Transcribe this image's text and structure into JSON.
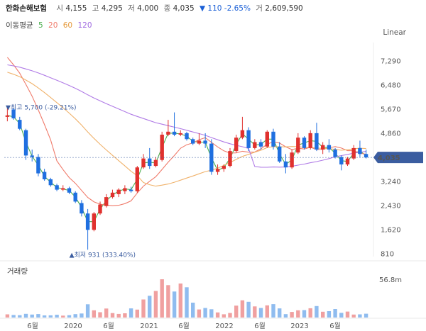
{
  "header": {
    "name": "한화손해보험",
    "open_label": "시",
    "open": "4,155",
    "high_label": "고",
    "high": "4,295",
    "low_label": "저",
    "low": "4,000",
    "close_label": "종",
    "close": "4,035",
    "change": "▼ 110 -2.65%",
    "volume_label": "거",
    "volume": "2,609,590"
  },
  "ma_legend": {
    "label": "이동평균",
    "p5": "5",
    "p20": "20",
    "p60": "60",
    "p120": "120"
  },
  "scale_mode": "Linear",
  "volume_title": "거래량",
  "colors": {
    "up": "#e0312e",
    "down": "#1f6fe0",
    "ma5": "#4caf50",
    "ma20": "#f07b6b",
    "ma60": "#f0b26b",
    "ma120": "#b07be6",
    "badge": "#3b5da0"
  },
  "chart_data": {
    "type": "candlestick",
    "y_ticks": [
      7290,
      6480,
      5670,
      4860,
      4035,
      3240,
      2430,
      1620,
      810
    ],
    "ylim": [
      700,
      7900
    ],
    "x_labels": [
      "6월",
      "2020",
      "6월",
      "2021",
      "6월",
      "2022",
      "6월",
      "2023",
      "6월"
    ],
    "last_price_badge": "4,035",
    "annotations": {
      "high": "▼최고 5,700 (-29.21%)",
      "low": "▲최저 931 (333.40%)"
    },
    "volume_tick": "56.8m",
    "candles": [
      {
        "o": 5400,
        "h": 5700,
        "l": 5250,
        "c": 5450
      },
      {
        "o": 5650,
        "h": 5700,
        "l": 5300,
        "c": 5350
      },
      {
        "o": 5300,
        "h": 5400,
        "l": 4950,
        "c": 5000
      },
      {
        "o": 4950,
        "h": 5000,
        "l": 3950,
        "c": 4100
      },
      {
        "o": 4100,
        "h": 4300,
        "l": 3900,
        "c": 4050
      },
      {
        "o": 4050,
        "h": 4150,
        "l": 3400,
        "c": 3500
      },
      {
        "o": 3550,
        "h": 3650,
        "l": 3250,
        "c": 3300
      },
      {
        "o": 3300,
        "h": 3350,
        "l": 3050,
        "c": 3100
      },
      {
        "o": 3100,
        "h": 3150,
        "l": 2900,
        "c": 2950
      },
      {
        "o": 2950,
        "h": 3100,
        "l": 2900,
        "c": 3000
      },
      {
        "o": 3000,
        "h": 3050,
        "l": 2800,
        "c": 2850
      },
      {
        "o": 2850,
        "h": 2900,
        "l": 2500,
        "c": 2550
      },
      {
        "o": 2500,
        "h": 2600,
        "l": 2050,
        "c": 2150
      },
      {
        "o": 2150,
        "h": 2300,
        "l": 931,
        "c": 1600
      },
      {
        "o": 1600,
        "h": 2200,
        "l": 1550,
        "c": 2150
      },
      {
        "o": 2150,
        "h": 2550,
        "l": 2100,
        "c": 2450
      },
      {
        "o": 2400,
        "h": 2800,
        "l": 2350,
        "c": 2700
      },
      {
        "o": 2700,
        "h": 2950,
        "l": 2650,
        "c": 2850
      },
      {
        "o": 2800,
        "h": 3000,
        "l": 2700,
        "c": 2950
      },
      {
        "o": 2900,
        "h": 3100,
        "l": 2800,
        "c": 3000
      },
      {
        "o": 2950,
        "h": 3050,
        "l": 2850,
        "c": 2900
      },
      {
        "o": 2900,
        "h": 3750,
        "l": 2850,
        "c": 3700
      },
      {
        "o": 3700,
        "h": 4150,
        "l": 3650,
        "c": 4000
      },
      {
        "o": 4000,
        "h": 4350,
        "l": 3650,
        "c": 3750
      },
      {
        "o": 3750,
        "h": 4050,
        "l": 3700,
        "c": 3950
      },
      {
        "o": 3950,
        "h": 4900,
        "l": 3900,
        "c": 4800
      },
      {
        "o": 4800,
        "h": 5300,
        "l": 4750,
        "c": 4900
      },
      {
        "o": 4900,
        "h": 5550,
        "l": 4750,
        "c": 4800
      },
      {
        "o": 4800,
        "h": 4950,
        "l": 4750,
        "c": 4850
      },
      {
        "o": 4850,
        "h": 4900,
        "l": 4600,
        "c": 4650
      },
      {
        "o": 4650,
        "h": 4700,
        "l": 4450,
        "c": 4500
      },
      {
        "o": 4500,
        "h": 4850,
        "l": 4450,
        "c": 4600
      },
      {
        "o": 4600,
        "h": 4850,
        "l": 4350,
        "c": 4500
      },
      {
        "o": 4500,
        "h": 4650,
        "l": 3450,
        "c": 3550
      },
      {
        "o": 3550,
        "h": 3800,
        "l": 3450,
        "c": 3650
      },
      {
        "o": 3650,
        "h": 3800,
        "l": 3550,
        "c": 3750
      },
      {
        "o": 3750,
        "h": 4350,
        "l": 3700,
        "c": 4250
      },
      {
        "o": 4250,
        "h": 4800,
        "l": 4200,
        "c": 4700
      },
      {
        "o": 4700,
        "h": 5400,
        "l": 4650,
        "c": 4950
      },
      {
        "o": 4950,
        "h": 5050,
        "l": 4250,
        "c": 4350
      },
      {
        "o": 4350,
        "h": 4650,
        "l": 4300,
        "c": 4550
      },
      {
        "o": 4550,
        "h": 4650,
        "l": 4300,
        "c": 4400
      },
      {
        "o": 4400,
        "h": 4950,
        "l": 4350,
        "c": 4900
      },
      {
        "o": 4900,
        "h": 5000,
        "l": 4300,
        "c": 4400
      },
      {
        "o": 4400,
        "h": 4550,
        "l": 3850,
        "c": 3900
      },
      {
        "o": 3900,
        "h": 4150,
        "l": 3500,
        "c": 3700
      },
      {
        "o": 3700,
        "h": 4300,
        "l": 3650,
        "c": 4200
      },
      {
        "o": 4200,
        "h": 4850,
        "l": 4150,
        "c": 4700
      },
      {
        "o": 4700,
        "h": 4750,
        "l": 4300,
        "c": 4350
      },
      {
        "o": 4350,
        "h": 4950,
        "l": 4300,
        "c": 4850
      },
      {
        "o": 4850,
        "h": 5200,
        "l": 4250,
        "c": 4300
      },
      {
        "o": 4300,
        "h": 4550,
        "l": 4150,
        "c": 4450
      },
      {
        "o": 4450,
        "h": 4650,
        "l": 4200,
        "c": 4300
      },
      {
        "o": 4300,
        "h": 4350,
        "l": 4000,
        "c": 4050
      },
      {
        "o": 4050,
        "h": 4100,
        "l": 3600,
        "c": 3800
      },
      {
        "o": 3800,
        "h": 4050,
        "l": 3750,
        "c": 4000
      },
      {
        "o": 4000,
        "h": 4450,
        "l": 3950,
        "c": 4350
      },
      {
        "o": 4350,
        "h": 4600,
        "l": 4050,
        "c": 4150
      },
      {
        "o": 4150,
        "h": 4300,
        "l": 4000,
        "c": 4035
      }
    ],
    "volumes": [
      3.0,
      2.4,
      2.2,
      3.5,
      2.8,
      3.3,
      2.0,
      2.1,
      2.6,
      1.8,
      2.2,
      3.2,
      3.8,
      12.5,
      6.8,
      5.0,
      8.5,
      4.2,
      3.4,
      4.0,
      8.6,
      7.5,
      17.0,
      20.5,
      25.0,
      36.0,
      30.5,
      24.5,
      32.0,
      28.5,
      14.0,
      7.6,
      9.0,
      7.8,
      4.8,
      3.1,
      4.3,
      11.2,
      16.2,
      14.8,
      10.5,
      9.0,
      11.5,
      12.6,
      8.6,
      3.2,
      5.3,
      6.8,
      7.0,
      8.7,
      10.8,
      5.5,
      6.0,
      8.0,
      4.4,
      5.6,
      2.8,
      3.0,
      3.6
    ]
  }
}
